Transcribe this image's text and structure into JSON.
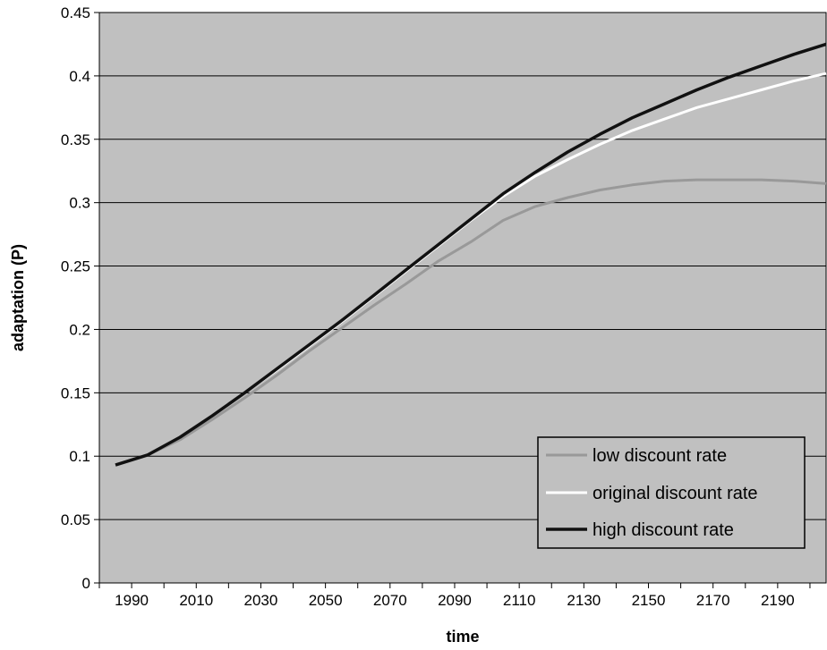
{
  "chart_data": {
    "type": "line",
    "title": "",
    "xlabel": "time",
    "ylabel": "adaptation (P)",
    "xlim": [
      1980,
      2205
    ],
    "ylim": [
      0,
      0.45
    ],
    "yticks": [
      "0",
      "0.05",
      "0.1",
      "0.15",
      "0.2",
      "0.25",
      "0.3",
      "0.35",
      "0.4",
      "0.45"
    ],
    "xticks": [
      "1990",
      "2010",
      "2030",
      "2050",
      "2070",
      "2090",
      "2110",
      "2130",
      "2150",
      "2170",
      "2190"
    ],
    "grid": "horizontal",
    "plot_background": "#c0c0c0",
    "legend_position": "bottom-right",
    "x": [
      1985,
      1995,
      2005,
      2015,
      2025,
      2035,
      2045,
      2055,
      2065,
      2075,
      2085,
      2095,
      2105,
      2115,
      2125,
      2135,
      2145,
      2155,
      2165,
      2175,
      2185,
      2195,
      2205
    ],
    "series": [
      {
        "name": "low discount rate",
        "color": "#999999",
        "values": [
          0.093,
          0.101,
          0.113,
          0.129,
          0.146,
          0.164,
          0.183,
          0.201,
          0.219,
          0.236,
          0.254,
          0.269,
          0.286,
          0.297,
          0.304,
          0.31,
          0.314,
          0.317,
          0.318,
          0.318,
          0.318,
          0.317,
          0.315
        ]
      },
      {
        "name": "original discount rate",
        "color": "#ffffff",
        "values": [
          0.093,
          0.101,
          0.115,
          0.132,
          0.15,
          0.168,
          0.187,
          0.206,
          0.226,
          0.246,
          0.266,
          0.286,
          0.305,
          0.321,
          0.334,
          0.346,
          0.357,
          0.366,
          0.375,
          0.382,
          0.389,
          0.396,
          0.402
        ]
      },
      {
        "name": "high discount rate",
        "color": "#111111",
        "values": [
          0.093,
          0.101,
          0.115,
          0.132,
          0.15,
          0.169,
          0.188,
          0.207,
          0.227,
          0.247,
          0.267,
          0.287,
          0.307,
          0.324,
          0.34,
          0.354,
          0.367,
          0.378,
          0.389,
          0.399,
          0.408,
          0.417,
          0.425
        ]
      }
    ]
  }
}
